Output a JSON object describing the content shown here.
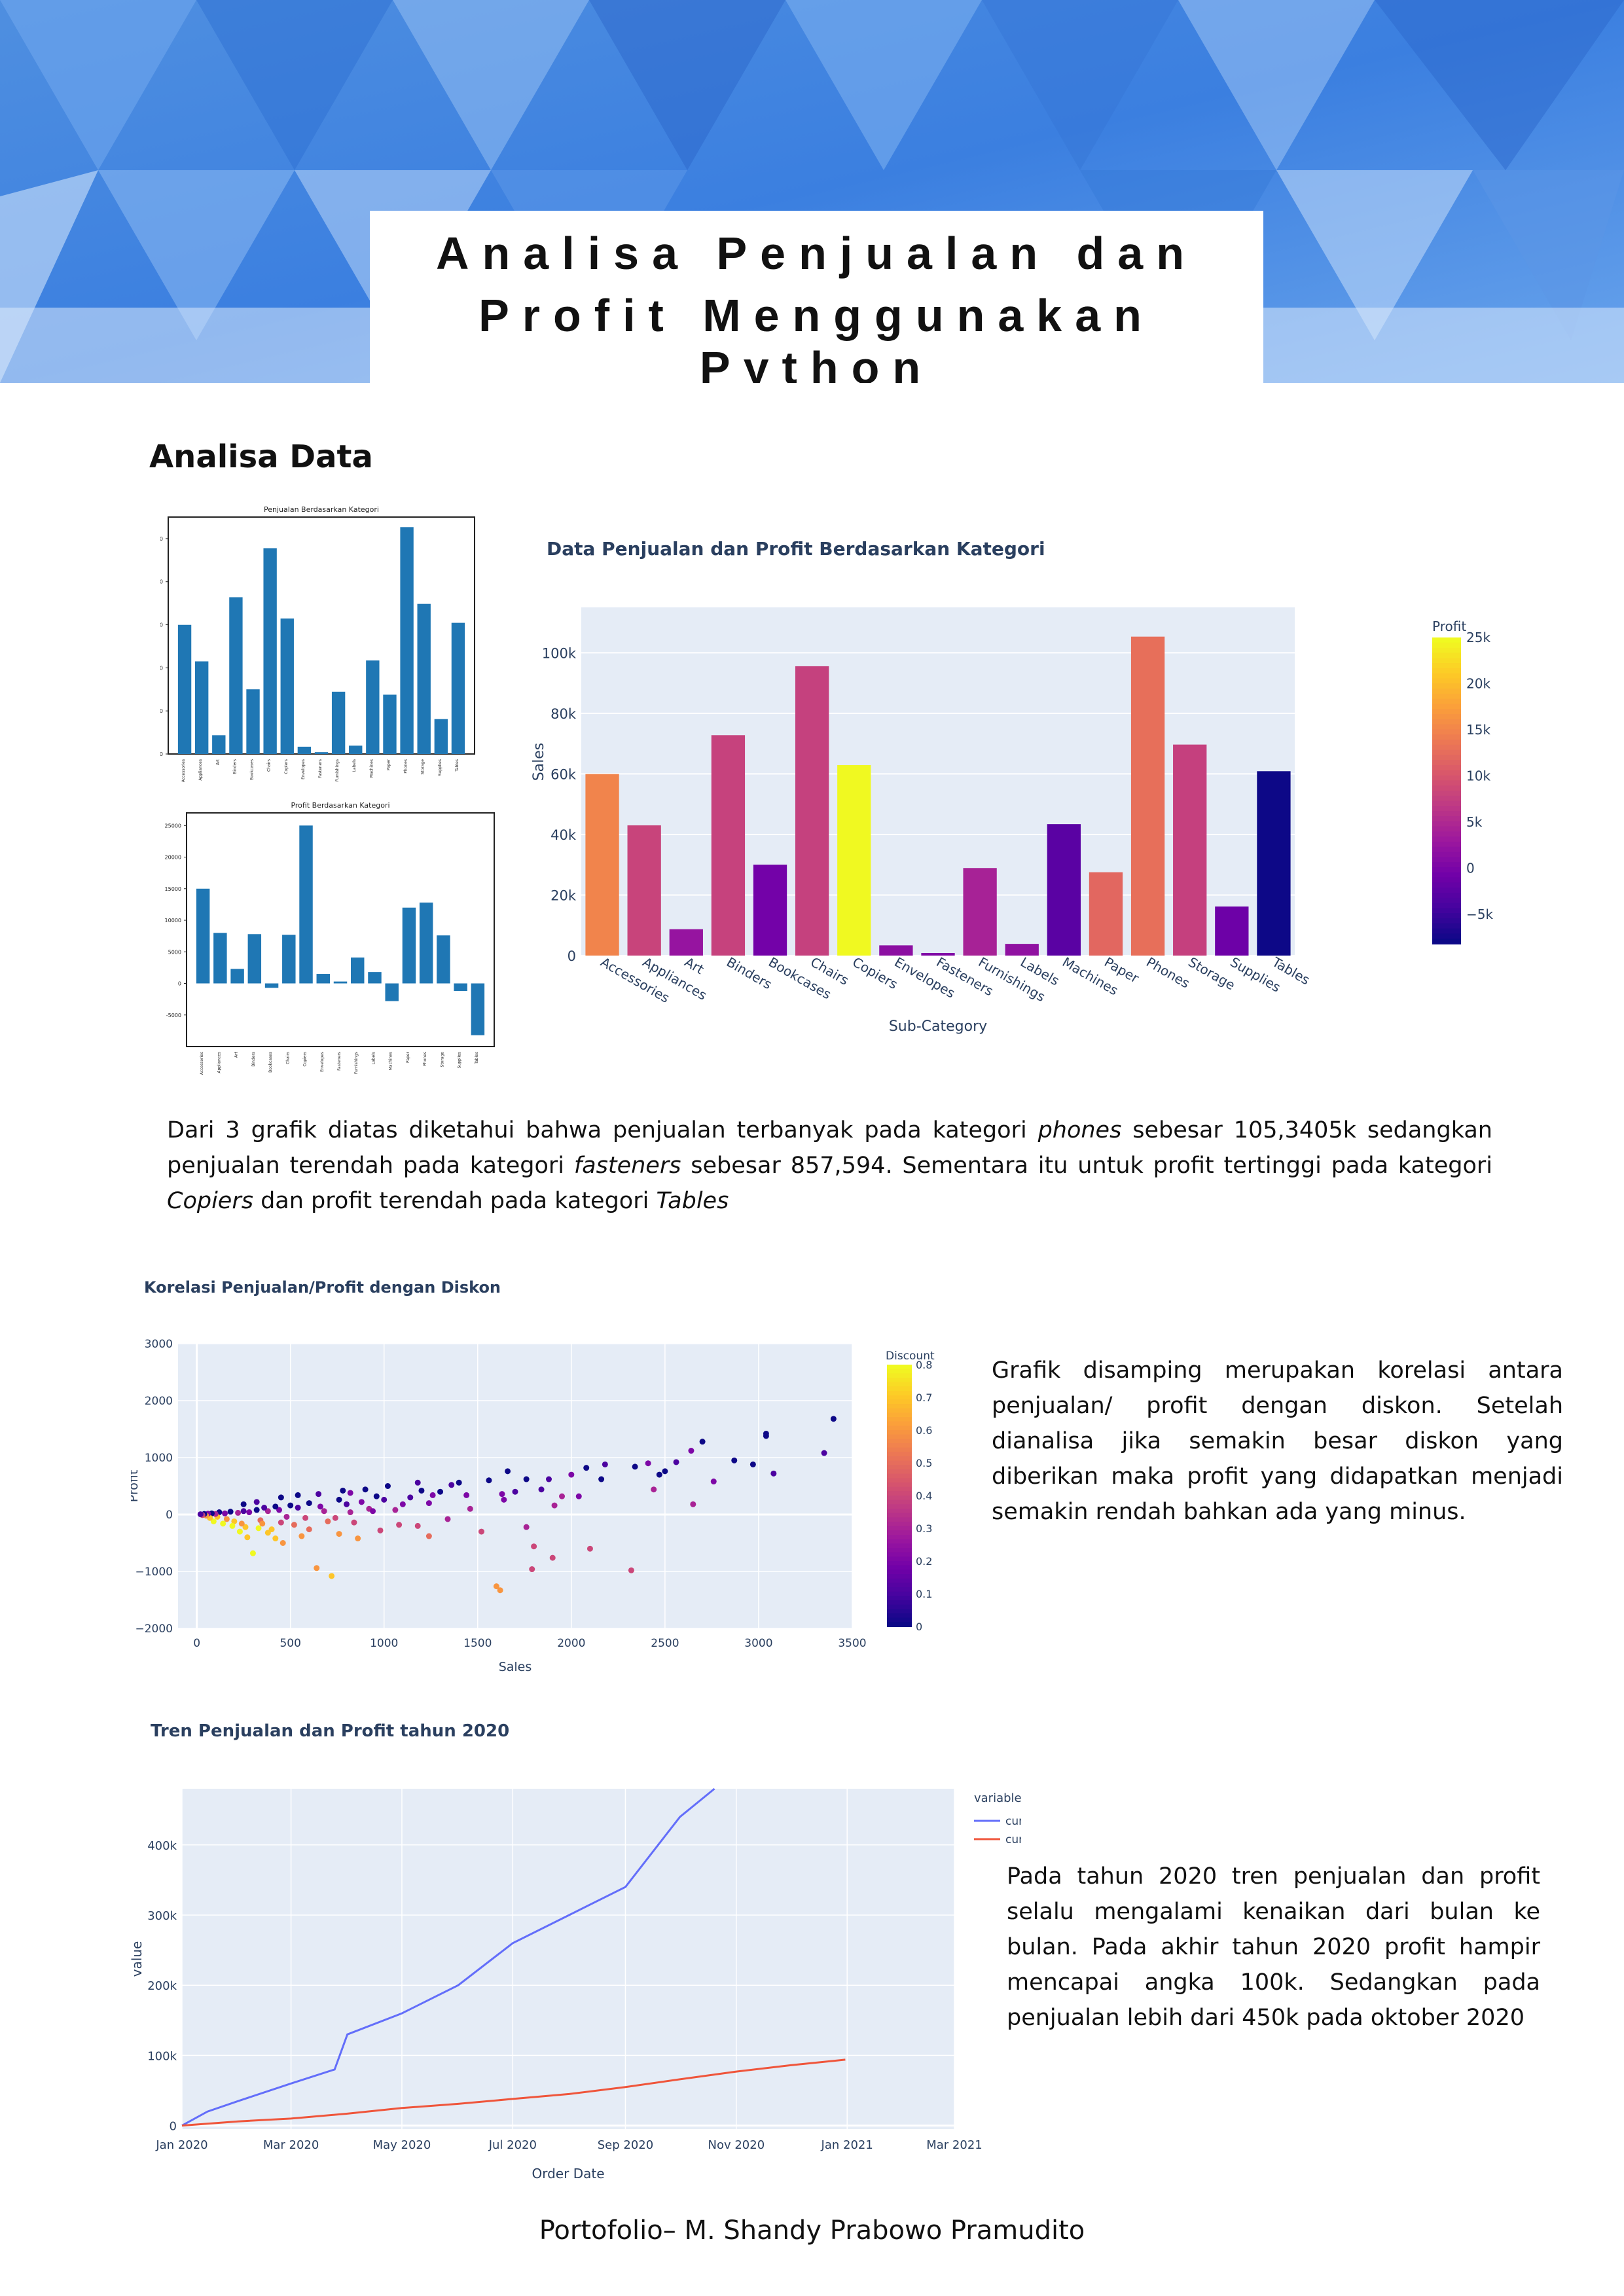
{
  "header": {
    "title_line1": "Analisa Penjualan dan",
    "title_line2": "Profit Menggunakan Python"
  },
  "section_title": "Analisa Data",
  "paragraphs": {
    "p1_a": "Dari 3 grafik diatas diketahui bahwa penjualan terbanyak pada kategori ",
    "p1_phones": "phones",
    "p1_b": " sebesar 105,3405k sedangkan penjualan terendah pada kategori ",
    "p1_fasteners": "fasteners",
    "p1_c": " sebesar 857,594. Sementara itu untuk profit tertinggi pada kategori ",
    "p1_copiers": "Copiers",
    "p1_d": " dan profit terendah pada kategori ",
    "p1_tables": "Tables",
    "p2": "Grafik disamping merupakan korelasi antara penjualan/ profit dengan diskon. Setelah dianalisa jika semakin besar diskon yang diberikan maka profit yang didapatkan menjadi semakin rendah bahkan ada yang minus.",
    "p3": "Pada tahun 2020 tren penjualan dan profit selalu mengalami kenaikan dari bulan ke bulan. Pada akhir tahun 2020 profit hampir mencapai angka 100k. Sedangkan pada penjualan lebih dari 450k pada oktober 2020"
  },
  "footer": "Portofolio– M. Shandy Prabowo Pramudito",
  "colors": {
    "mpl_bar": "#1f77b4",
    "plot_bg": "#e5ecf6",
    "cum_sales": "#636efa",
    "cum_profit": "#ef553b"
  },
  "chart_data": [
    {
      "type": "bar",
      "title": "Penjualan Berdasarkan Kategori",
      "categories": [
        "Accessories",
        "Appliances",
        "Art",
        "Binders",
        "Bookcases",
        "Chairs",
        "Copiers",
        "Envelopes",
        "Fasteners",
        "Furnishings",
        "Labels",
        "Machines",
        "Paper",
        "Phones",
        "Storage",
        "Supplies",
        "Tables"
      ],
      "values": [
        59946,
        43004,
        8709,
        72789,
        30025,
        95554,
        62899,
        3378,
        858,
        28915,
        3865,
        43413,
        27530,
        105341,
        69687,
        16201,
        60894
      ],
      "ylim": [
        0,
        110000
      ],
      "yticks": [
        "0",
        "20000",
        "40000",
        "60000",
        "80000",
        "100000"
      ]
    },
    {
      "type": "bar",
      "title": "Profit Berdasarkan Kategori",
      "categories": [
        "Accessories",
        "Appliances",
        "Art",
        "Binders",
        "Bookcases",
        "Chairs",
        "Copiers",
        "Envelopes",
        "Fasteners",
        "Furnishings",
        "Labels",
        "Machines",
        "Paper",
        "Phones",
        "Storage",
        "Supplies",
        "Tables"
      ],
      "values": [
        15000,
        8000,
        2300,
        7800,
        -700,
        7700,
        25000,
        1500,
        300,
        4100,
        1800,
        -2800,
        12000,
        12800,
        7600,
        -1200,
        -8200
      ],
      "ylim": [
        -10000,
        27000
      ],
      "yticks": [
        "-5000",
        "0",
        "5000",
        "10000",
        "15000",
        "20000",
        "25000"
      ]
    },
    {
      "type": "bar",
      "title": "Data Penjualan dan Profit Berdasarkan Kategori",
      "xlabel": "Sub-Category",
      "ylabel": "Sales",
      "categories": [
        "Accessories",
        "Appliances",
        "Art",
        "Binders",
        "Bookcases",
        "Chairs",
        "Copiers",
        "Envelopes",
        "Fasteners",
        "Furnishings",
        "Labels",
        "Machines",
        "Paper",
        "Phones",
        "Storage",
        "Supplies",
        "Tables"
      ],
      "values": [
        59946,
        43004,
        8709,
        72789,
        30025,
        95554,
        62899,
        3378,
        858,
        28915,
        3865,
        43413,
        27530,
        105341,
        69687,
        16201,
        60894
      ],
      "profit": [
        15000,
        8000,
        2300,
        7800,
        -700,
        7700,
        25000,
        1500,
        300,
        4100,
        1800,
        -2800,
        12000,
        12800,
        7600,
        -1200,
        -8200
      ],
      "ylim": [
        0,
        115000
      ],
      "yticks": [
        "0",
        "20k",
        "40k",
        "60k",
        "80k",
        "100k"
      ],
      "colorbar_title": "Profit",
      "colorbar_ticks": [
        "25k",
        "20k",
        "15k",
        "10k",
        "5k",
        "0",
        "−5k"
      ]
    },
    {
      "type": "scatter",
      "title": "Korelasi Penjualan/Profit dengan Diskon",
      "xlabel": "Sales",
      "ylabel": "Profit",
      "xlim": [
        -100,
        3500
      ],
      "ylim": [
        -2000,
        3000
      ],
      "xticks": [
        "0",
        "500",
        "1000",
        "1500",
        "2000",
        "2500",
        "3000",
        "3500"
      ],
      "yticks": [
        "−2000",
        "−1000",
        "0",
        "1000",
        "2000",
        "3000"
      ],
      "colorbar_title": "Discount",
      "colorbar_ticks": [
        "0.8",
        "0.7",
        "0.6",
        "0.5",
        "0.4",
        "0.3",
        "0.2",
        "0.1",
        "0"
      ],
      "points": [
        [
          3400,
          1680,
          0
        ],
        [
          3350,
          1080,
          0.1
        ],
        [
          3040,
          1420,
          0
        ],
        [
          3040,
          1380,
          0
        ],
        [
          3080,
          720,
          0.1
        ],
        [
          2970,
          880,
          0
        ],
        [
          2870,
          950,
          0
        ],
        [
          2700,
          1280,
          0
        ],
        [
          2640,
          1120,
          0.2
        ],
        [
          2560,
          920,
          0.1
        ],
        [
          2500,
          760,
          0
        ],
        [
          2470,
          700,
          0
        ],
        [
          2410,
          900,
          0.2
        ],
        [
          2340,
          840,
          0
        ],
        [
          2440,
          440,
          0.3
        ],
        [
          2650,
          180,
          0.3
        ],
        [
          2760,
          580,
          0.2
        ],
        [
          2320,
          -980,
          0.4
        ],
        [
          2180,
          880,
          0.1
        ],
        [
          2160,
          620,
          0
        ],
        [
          2080,
          820,
          0
        ],
        [
          2000,
          700,
          0.2
        ],
        [
          2040,
          320,
          0.2
        ],
        [
          2100,
          -600,
          0.4
        ],
        [
          1950,
          320,
          0.3
        ],
        [
          1900,
          -760,
          0.4
        ],
        [
          1800,
          -560,
          0.4
        ],
        [
          1760,
          -220,
          0.3
        ],
        [
          1790,
          -960,
          0.4
        ],
        [
          1910,
          160,
          0.3
        ],
        [
          1840,
          440,
          0.1
        ],
        [
          1760,
          620,
          0
        ],
        [
          1700,
          400,
          0.1
        ],
        [
          1660,
          760,
          0
        ],
        [
          1630,
          360,
          0.2
        ],
        [
          1600,
          -1260,
          0.6
        ],
        [
          1620,
          -1330,
          0.6
        ],
        [
          1520,
          -300,
          0.4
        ],
        [
          1440,
          340,
          0.2
        ],
        [
          1400,
          560,
          0
        ],
        [
          1460,
          100,
          0.3
        ],
        [
          1360,
          520,
          0.1
        ],
        [
          1300,
          400,
          0
        ],
        [
          1340,
          -80,
          0.3
        ],
        [
          1260,
          340,
          0.2
        ],
        [
          1200,
          420,
          0
        ],
        [
          1140,
          300,
          0.1
        ],
        [
          1100,
          180,
          0.2
        ],
        [
          1080,
          -180,
          0.4
        ],
        [
          1000,
          260,
          0.1
        ],
        [
          960,
          320,
          0
        ],
        [
          920,
          100,
          0.3
        ],
        [
          880,
          220,
          0.2
        ],
        [
          840,
          -140,
          0.4
        ],
        [
          800,
          180,
          0.1
        ],
        [
          760,
          260,
          0
        ],
        [
          720,
          -1080,
          0.7
        ],
        [
          700,
          -120,
          0.5
        ],
        [
          660,
          140,
          0.2
        ],
        [
          640,
          -940,
          0.6
        ],
        [
          600,
          200,
          0
        ],
        [
          580,
          -60,
          0.4
        ],
        [
          560,
          -380,
          0.6
        ],
        [
          540,
          120,
          0.1
        ],
        [
          500,
          160,
          0
        ],
        [
          480,
          -40,
          0.3
        ],
        [
          460,
          -500,
          0.6
        ],
        [
          440,
          80,
          0.2
        ],
        [
          420,
          140,
          0
        ],
        [
          400,
          -260,
          0.7
        ],
        [
          380,
          60,
          0.3
        ],
        [
          360,
          120,
          0.1
        ],
        [
          340,
          -100,
          0.5
        ],
        [
          320,
          80,
          0
        ],
        [
          300,
          -680,
          0.8
        ],
        [
          280,
          40,
          0.2
        ],
        [
          260,
          -220,
          0.7
        ],
        [
          250,
          60,
          0.1
        ],
        [
          240,
          -160,
          0.6
        ],
        [
          220,
          30,
          0.3
        ],
        [
          200,
          -120,
          0.7
        ],
        [
          180,
          50,
          0
        ],
        [
          160,
          -80,
          0.6
        ],
        [
          150,
          20,
          0.2
        ],
        [
          140,
          -160,
          0.8
        ],
        [
          120,
          40,
          0
        ],
        [
          110,
          -40,
          0.7
        ],
        [
          100,
          10,
          0.3
        ],
        [
          90,
          -120,
          0.8
        ],
        [
          80,
          20,
          0
        ],
        [
          70,
          -60,
          0.7
        ],
        [
          60,
          15,
          0.2
        ],
        [
          50,
          -20,
          0.6
        ],
        [
          40,
          10,
          0
        ],
        [
          30,
          -10,
          0.4
        ],
        [
          20,
          5,
          0.1
        ],
        [
          250,
          180,
          0
        ],
        [
          320,
          220,
          0.1
        ],
        [
          450,
          300,
          0
        ],
        [
          540,
          340,
          0
        ],
        [
          650,
          360,
          0.1
        ],
        [
          780,
          420,
          0
        ],
        [
          820,
          380,
          0.2
        ],
        [
          900,
          440,
          0
        ],
        [
          1020,
          500,
          0
        ],
        [
          1180,
          560,
          0.1
        ],
        [
          1240,
          200,
          0.2
        ],
        [
          1560,
          600,
          0
        ],
        [
          1640,
          260,
          0.2
        ],
        [
          1880,
          620,
          0.1
        ],
        [
          380,
          -320,
          0.7
        ],
        [
          420,
          -420,
          0.7
        ],
        [
          230,
          -300,
          0.8
        ],
        [
          190,
          -200,
          0.8
        ],
        [
          330,
          -240,
          0.8
        ],
        [
          270,
          -400,
          0.7
        ],
        [
          350,
          -160,
          0.6
        ],
        [
          600,
          -260,
          0.5
        ],
        [
          760,
          -340,
          0.6
        ],
        [
          980,
          -280,
          0.4
        ],
        [
          1180,
          -200,
          0.4
        ],
        [
          1240,
          -380,
          0.5
        ],
        [
          860,
          -420,
          0.6
        ],
        [
          520,
          -180,
          0.5
        ],
        [
          450,
          -140,
          0.4
        ],
        [
          680,
          60,
          0.3
        ],
        [
          740,
          -60,
          0.4
        ],
        [
          820,
          40,
          0.3
        ],
        [
          940,
          60,
          0.2
        ],
        [
          1060,
          80,
          0.3
        ]
      ]
    },
    {
      "type": "line",
      "title": "Tren Penjualan dan Profit tahun 2020",
      "xlabel": "Order Date",
      "ylabel": "value",
      "legend_title": "variable",
      "xticks": [
        "Jan 2020",
        "Mar 2020",
        "May 2020",
        "Jul 2020",
        "Sep 2020",
        "Nov 2020",
        "Jan 2021",
        "Mar 2021"
      ],
      "yticks": [
        "0",
        "100k",
        "200k",
        "300k",
        "400k"
      ],
      "ylim": [
        -5000,
        480000
      ],
      "series": [
        {
          "name": "cum_sales",
          "x": [
            "2020-01-01",
            "2020-01-15",
            "2020-02-01",
            "2020-03-01",
            "2020-03-25",
            "2020-04-01",
            "2020-05-01",
            "2020-06-01",
            "2020-07-01",
            "2020-08-01",
            "2020-09-01",
            "2020-10-01",
            "2020-10-20"
          ],
          "values": [
            0,
            20000,
            35000,
            60000,
            80000,
            130000,
            160000,
            200000,
            260000,
            300000,
            340000,
            440000,
            480000
          ]
        },
        {
          "name": "cum_profit",
          "x": [
            "2020-01-01",
            "2020-02-01",
            "2020-03-01",
            "2020-04-01",
            "2020-05-01",
            "2020-06-01",
            "2020-07-01",
            "2020-08-01",
            "2020-09-01",
            "2020-10-01",
            "2020-11-01",
            "2020-12-01",
            "2020-12-31"
          ],
          "values": [
            0,
            6000,
            10000,
            17000,
            25000,
            31000,
            38000,
            45000,
            55000,
            66000,
            77000,
            86000,
            94000
          ]
        }
      ]
    }
  ]
}
